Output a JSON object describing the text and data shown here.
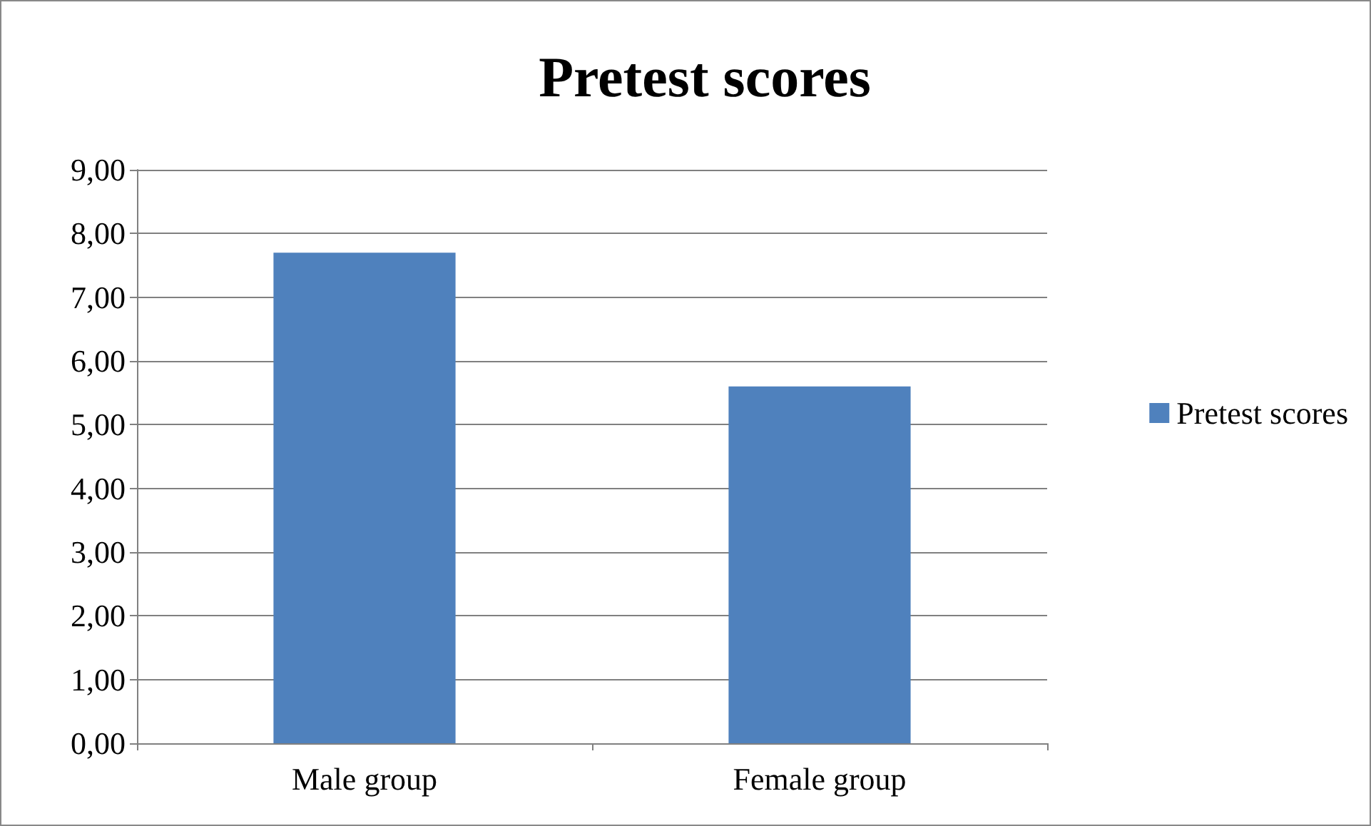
{
  "chart_data": {
    "type": "bar",
    "title": "Pretest scores",
    "categories": [
      "Male group",
      "Female group"
    ],
    "series": [
      {
        "name": "Pretest scores",
        "color": "#4f81bd",
        "values": [
          7.7,
          5.6
        ]
      }
    ],
    "ylim": [
      0,
      9
    ],
    "yticks": [
      {
        "value": 0,
        "label": "0,00"
      },
      {
        "value": 1,
        "label": "1,00"
      },
      {
        "value": 2,
        "label": "2,00"
      },
      {
        "value": 3,
        "label": "3,00"
      },
      {
        "value": 4,
        "label": "4,00"
      },
      {
        "value": 5,
        "label": "5,00"
      },
      {
        "value": 6,
        "label": "6,00"
      },
      {
        "value": 7,
        "label": "7,00"
      },
      {
        "value": 8,
        "label": "8,00"
      },
      {
        "value": 9,
        "label": "9,00"
      }
    ],
    "grid": "y",
    "legend": "right"
  }
}
